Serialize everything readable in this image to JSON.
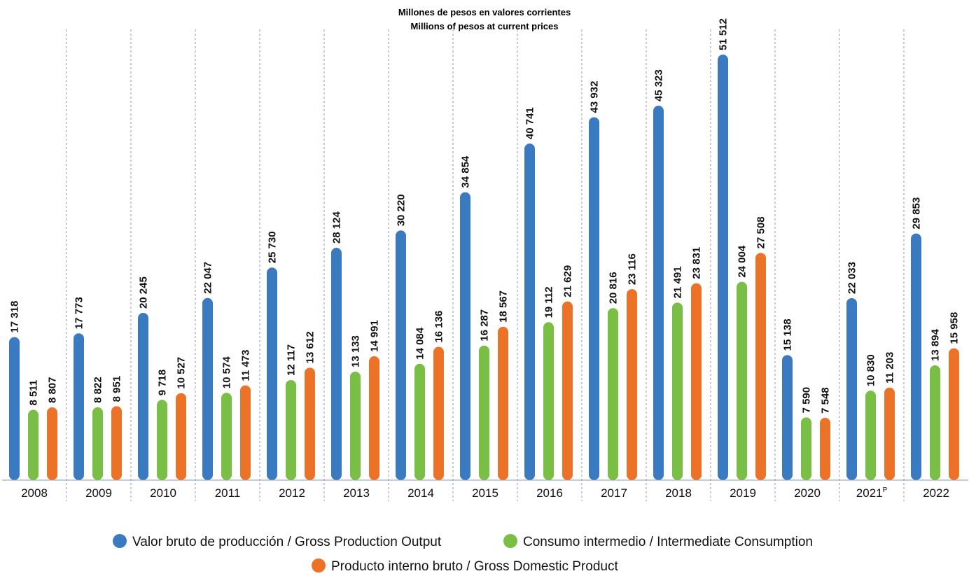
{
  "chart_data": {
    "type": "bar",
    "title": "",
    "subtitle_lines": [
      "Millones de pesos en valores corrientes",
      "Millions of pesos at current prices"
    ],
    "categories": [
      "2008",
      "2009",
      "2010",
      "2011",
      "2012",
      "2013",
      "2014",
      "2015",
      "2016",
      "2017",
      "2018",
      "2019",
      "2020",
      "2021",
      "2022"
    ],
    "category_superscripts": [
      "",
      "",
      "",
      "",
      "",
      "",
      "",
      "",
      "",
      "",
      "",
      "",
      "",
      "P",
      ""
    ],
    "series": [
      {
        "name": "Valor bruto de producción / Gross Production Output",
        "color": "#3a7ac1",
        "values": [
          17318,
          17773,
          20245,
          22047,
          25730,
          28124,
          30220,
          34854,
          40741,
          43932,
          45323,
          51512,
          15138,
          22033,
          29853
        ],
        "labels": [
          "17 318",
          "17 773",
          "20 245",
          "22 047",
          "25 730",
          "28 124",
          "30 220",
          "34 854",
          "40 741",
          "43 932",
          "45 323",
          "51 512",
          "15 138",
          "22 033",
          "29 853"
        ]
      },
      {
        "name": "Consumo intermedio / Intermediate Consumption",
        "color": "#7abf45",
        "values": [
          8511,
          8822,
          9718,
          10574,
          12117,
          13133,
          14084,
          16287,
          19112,
          20816,
          21491,
          24004,
          7590,
          10830,
          13894
        ],
        "labels": [
          "8 511",
          "8 822",
          "9 718",
          "10 574",
          "12 117",
          "13 133",
          "14 084",
          "16 287",
          "19 112",
          "20 816",
          "21 491",
          "24 004",
          "7 590",
          "10 830",
          "13 894"
        ]
      },
      {
        "name": "Producto interno bruto / Gross Domestic Product",
        "color": "#eb7227",
        "values": [
          8807,
          8951,
          10527,
          11473,
          13612,
          14991,
          16136,
          18567,
          21629,
          23116,
          23831,
          27508,
          7548,
          11203,
          15958
        ],
        "labels": [
          "8 807",
          "8 951",
          "10 527",
          "11 473",
          "13 612",
          "14 991",
          "16 136",
          "18 567",
          "21 629",
          "23 116",
          "23 831",
          "27 508",
          "7 548",
          "11 203",
          "15 958"
        ]
      }
    ],
    "ylim": [
      0,
      51512
    ],
    "grid": false,
    "legend_position": "bottom"
  }
}
